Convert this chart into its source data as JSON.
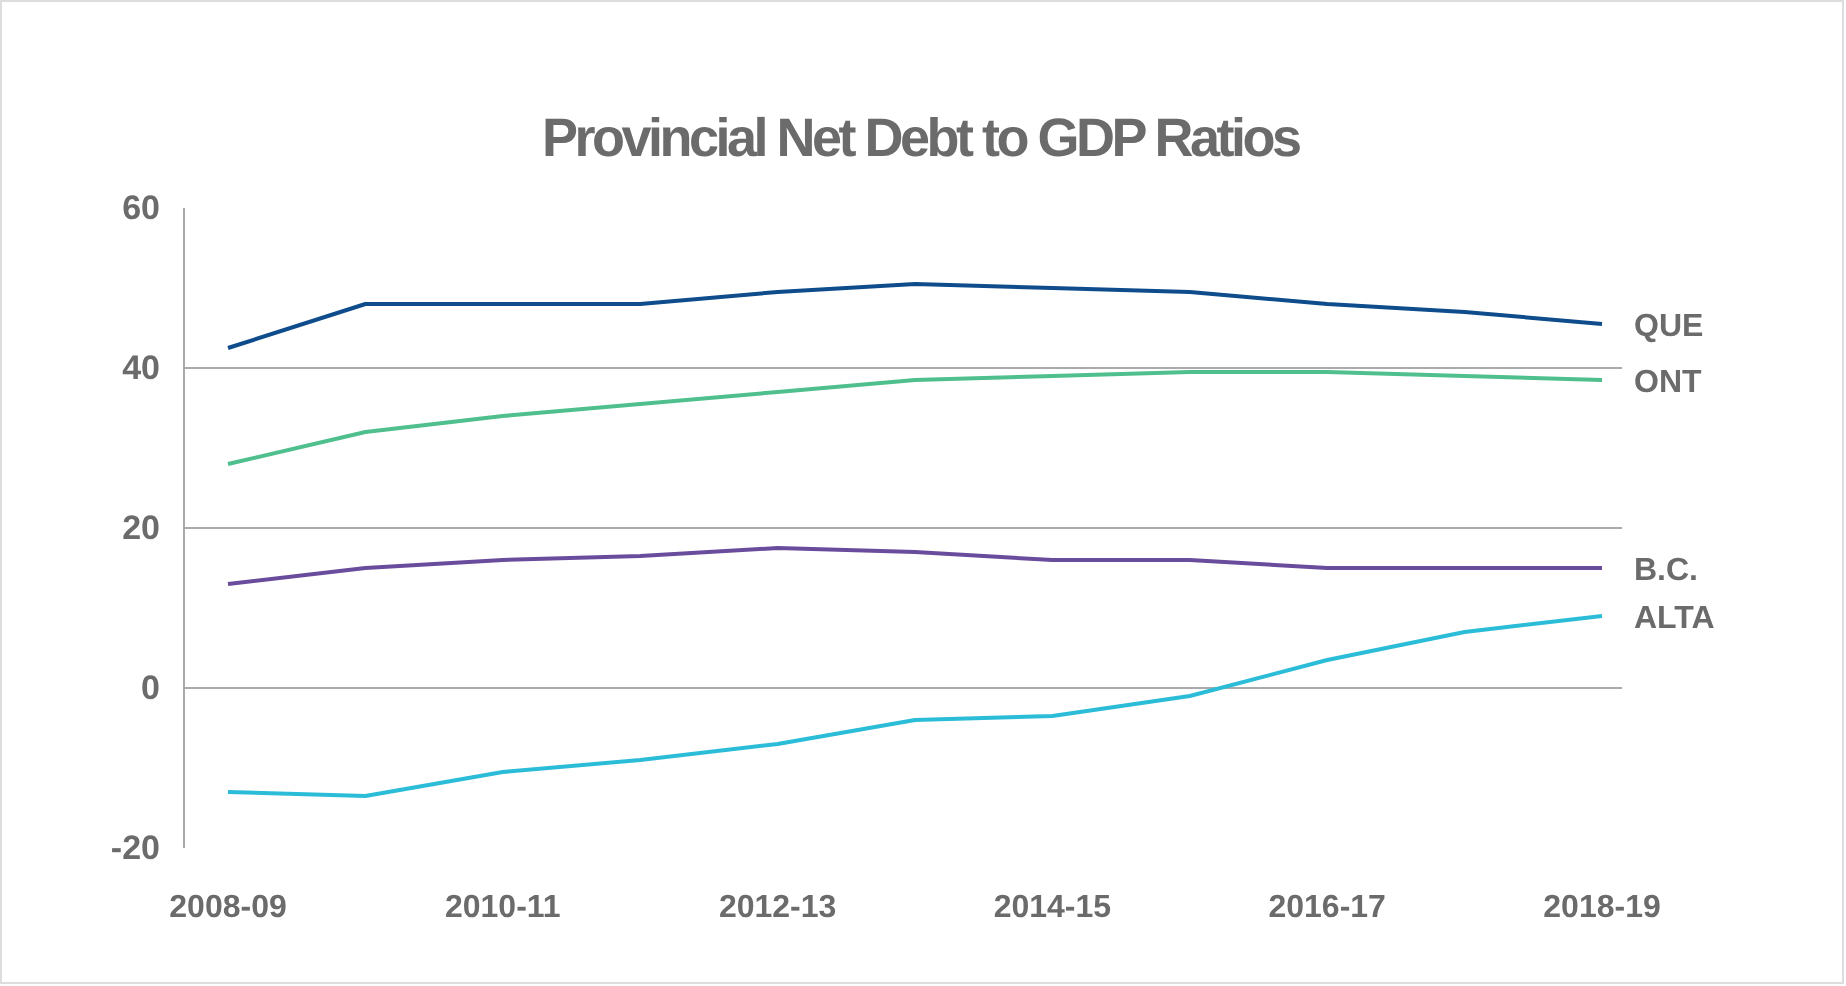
{
  "chart_data": {
    "type": "line",
    "title": "Provincial Net Debt to GDP Ratios",
    "categories": [
      "2008-09",
      null,
      "2010-11",
      null,
      "2012-13",
      null,
      "2014-15",
      null,
      "2016-17",
      null,
      "2018-19"
    ],
    "series": [
      {
        "name": "QUE",
        "color": "#0e4c8c",
        "values": [
          42.5,
          48,
          48,
          48,
          49.5,
          50.5,
          50,
          49.5,
          48,
          47,
          45.5
        ]
      },
      {
        "name": "ONT",
        "color": "#4fc08d",
        "values": [
          28,
          32,
          34,
          35.5,
          37,
          38.5,
          39,
          39.5,
          39.5,
          39,
          38.5
        ]
      },
      {
        "name": "B.C.",
        "color": "#6a4c9c",
        "values": [
          13,
          15,
          16,
          16.5,
          17.5,
          17,
          16,
          16,
          15,
          15,
          15
        ]
      },
      {
        "name": "ALTA",
        "color": "#2bbcd8",
        "values": [
          -13,
          -13.5,
          -10.5,
          -9,
          -7,
          -4,
          -3.5,
          -1,
          3.5,
          7,
          9
        ]
      }
    ],
    "ylim": [
      -20,
      60
    ],
    "yticks": [
      -20,
      0,
      20,
      40,
      60
    ],
    "grid": "y",
    "legend": "right",
    "marker": "none",
    "line_style": "solid"
  }
}
